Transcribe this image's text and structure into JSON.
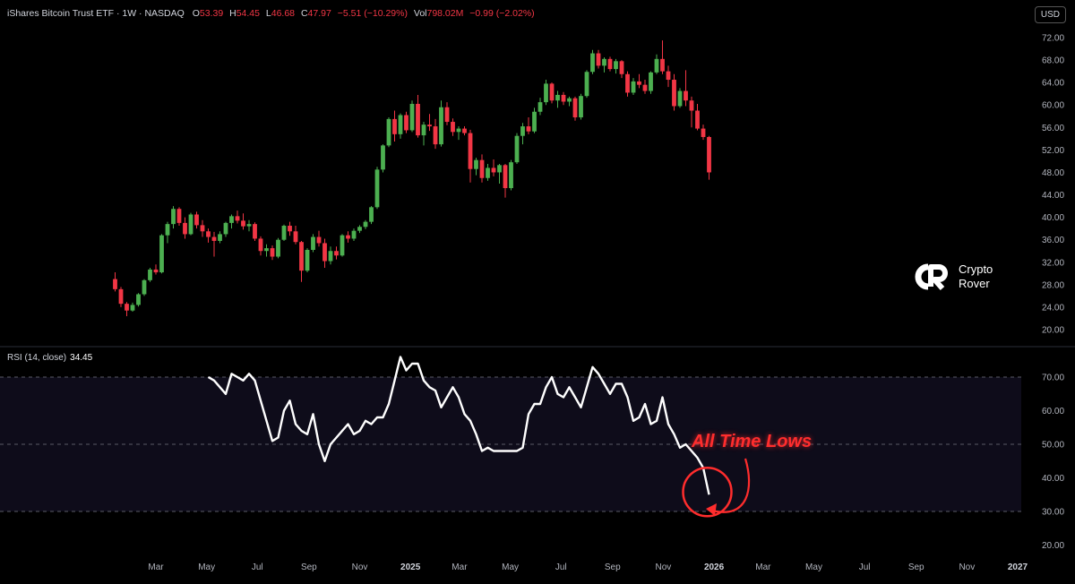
{
  "header": {
    "symbol": "iShares Bitcoin Trust ETF · 1W · NASDAQ",
    "open_label": "O",
    "open": "53.39",
    "high_label": "H",
    "high": "54.45",
    "low_label": "L",
    "low": "46.68",
    "close_label": "C",
    "close": "47.97",
    "change": "−5.51 (−10.29%)",
    "vol_label": "Vol",
    "vol": "798.02M",
    "vol_change": "−0.99 (−2.02%)"
  },
  "currency_button": "USD",
  "rsi_header": {
    "label": "RSI (14, close)",
    "value": "34.45"
  },
  "logo": {
    "line1": "Crypto",
    "line2": "Rover"
  },
  "annotation": "All Time Lows",
  "colors": {
    "up": "#26a69a",
    "up_green": "#4caf50",
    "down": "#f23645",
    "rsi_line": "#ffffff",
    "annotation": "#ff2d2d",
    "rsi_band": "#0e0c1a"
  },
  "chart_data": [
    {
      "type": "candlestick",
      "title": "iShares Bitcoin Trust ETF · 1W · NASDAQ",
      "ylim": [
        20,
        72
      ],
      "yticks": [
        "72.00",
        "68.00",
        "64.00",
        "60.00",
        "56.00",
        "52.00",
        "48.00",
        "44.00",
        "40.00",
        "36.00",
        "32.00",
        "28.00",
        "24.00",
        "20.00"
      ],
      "xticks": [
        "Mar",
        "May",
        "Jul",
        "Sep",
        "Nov",
        "2025",
        "Mar",
        "May",
        "Jul",
        "Sep",
        "Nov",
        "2026",
        "Mar",
        "May",
        "Jul",
        "Sep",
        "Nov",
        "2027"
      ],
      "x_start": "2024-01-12",
      "interval_weeks": 1,
      "ohlc": [
        [
          29.0,
          30.2,
          26.8,
          27.2
        ],
        [
          27.2,
          27.6,
          24.0,
          24.6
        ],
        [
          24.6,
          24.9,
          22.4,
          23.4
        ],
        [
          23.4,
          24.8,
          23.2,
          24.4
        ],
        [
          24.4,
          26.5,
          24.1,
          26.3
        ],
        [
          26.3,
          29.0,
          26.0,
          28.8
        ],
        [
          28.8,
          31.0,
          28.5,
          30.7
        ],
        [
          30.7,
          31.6,
          29.8,
          30.2
        ],
        [
          30.2,
          37.0,
          30.0,
          36.8
        ],
        [
          36.8,
          39.2,
          35.4,
          38.8
        ],
        [
          38.8,
          42.0,
          38.0,
          41.5
        ],
        [
          41.5,
          41.8,
          38.5,
          39.0
        ],
        [
          39.0,
          40.0,
          36.2,
          37.0
        ],
        [
          37.0,
          40.8,
          36.8,
          40.5
        ],
        [
          40.5,
          41.0,
          38.0,
          38.6
        ],
        [
          38.6,
          39.5,
          36.5,
          37.5
        ],
        [
          37.5,
          38.0,
          35.5,
          36.5
        ],
        [
          36.5,
          37.4,
          33.0,
          35.8
        ],
        [
          35.8,
          37.5,
          35.4,
          37.0
        ],
        [
          37.0,
          39.2,
          36.5,
          39.0
        ],
        [
          39.0,
          40.5,
          38.0,
          40.2
        ],
        [
          40.2,
          41.2,
          38.9,
          39.4
        ],
        [
          39.4,
          40.7,
          37.8,
          38.4
        ],
        [
          38.4,
          39.5,
          37.5,
          38.8
        ],
        [
          38.8,
          39.1,
          35.8,
          36.2
        ],
        [
          36.2,
          36.6,
          33.2,
          34.0
        ],
        [
          34.0,
          35.2,
          33.0,
          34.5
        ],
        [
          34.5,
          35.0,
          32.4,
          33.0
        ],
        [
          33.0,
          36.3,
          32.7,
          36.0
        ],
        [
          36.0,
          38.7,
          35.8,
          38.5
        ],
        [
          38.5,
          39.2,
          36.7,
          37.5
        ],
        [
          37.5,
          38.5,
          35.2,
          35.6
        ],
        [
          35.6,
          35.8,
          28.5,
          30.5
        ],
        [
          30.5,
          34.5,
          30.2,
          34.2
        ],
        [
          34.2,
          37.0,
          33.8,
          36.5
        ],
        [
          36.5,
          37.6,
          34.8,
          35.4
        ],
        [
          35.4,
          36.2,
          31.0,
          32.2
        ],
        [
          32.2,
          34.8,
          31.6,
          34.0
        ],
        [
          34.0,
          34.8,
          32.5,
          33.2
        ],
        [
          33.2,
          37.0,
          33.0,
          36.8
        ],
        [
          36.8,
          37.5,
          35.5,
          36.2
        ],
        [
          36.2,
          38.0,
          35.8,
          37.6
        ],
        [
          37.6,
          38.6,
          37.2,
          38.3
        ],
        [
          38.3,
          39.5,
          37.9,
          39.2
        ],
        [
          39.2,
          42.0,
          38.8,
          41.8
        ],
        [
          41.8,
          49.0,
          41.5,
          48.5
        ],
        [
          48.5,
          53.0,
          48.0,
          52.8
        ],
        [
          52.8,
          57.8,
          52.5,
          57.5
        ],
        [
          57.5,
          59.0,
          53.5,
          54.8
        ],
        [
          54.8,
          58.5,
          54.0,
          58.2
        ],
        [
          58.2,
          58.8,
          55.0,
          55.5
        ],
        [
          55.5,
          60.8,
          55.2,
          60.2
        ],
        [
          60.2,
          61.8,
          54.2,
          54.6
        ],
        [
          54.6,
          57.0,
          52.8,
          56.5
        ],
        [
          56.5,
          58.4,
          55.4,
          56.2
        ],
        [
          56.2,
          57.5,
          52.2,
          53.0
        ],
        [
          53.0,
          60.8,
          52.6,
          59.6
        ],
        [
          59.6,
          60.5,
          56.4,
          57.0
        ],
        [
          57.0,
          57.6,
          54.5,
          55.2
        ],
        [
          55.2,
          56.2,
          53.8,
          55.8
        ],
        [
          55.8,
          56.2,
          54.6,
          55.0
        ],
        [
          55.0,
          55.6,
          46.2,
          48.6
        ],
        [
          48.6,
          50.6,
          47.5,
          50.2
        ],
        [
          50.2,
          51.2,
          46.2,
          47.0
        ],
        [
          47.0,
          49.5,
          46.5,
          48.8
        ],
        [
          48.8,
          50.3,
          47.3,
          48.0
        ],
        [
          48.0,
          49.5,
          46.0,
          49.3
        ],
        [
          49.3,
          49.5,
          43.5,
          45.2
        ],
        [
          45.2,
          50.2,
          44.8,
          49.8
        ],
        [
          49.8,
          55.0,
          49.5,
          54.5
        ],
        [
          54.5,
          56.8,
          53.0,
          56.2
        ],
        [
          56.2,
          57.8,
          54.8,
          55.3
        ],
        [
          55.3,
          59.5,
          55.0,
          58.8
        ],
        [
          58.8,
          61.3,
          58.2,
          60.5
        ],
        [
          60.5,
          64.5,
          60.0,
          63.8
        ],
        [
          63.8,
          64.0,
          60.3,
          60.8
        ],
        [
          60.8,
          62.5,
          59.5,
          61.8
        ],
        [
          61.8,
          62.3,
          60.0,
          60.6
        ],
        [
          60.6,
          61.5,
          59.8,
          61.2
        ],
        [
          61.2,
          61.5,
          57.2,
          57.8
        ],
        [
          57.8,
          62.0,
          57.4,
          61.6
        ],
        [
          61.6,
          66.2,
          61.3,
          65.9
        ],
        [
          65.9,
          69.8,
          65.5,
          69.2
        ],
        [
          69.2,
          69.8,
          66.5,
          67.0
        ],
        [
          67.0,
          68.5,
          65.8,
          68.2
        ],
        [
          68.2,
          68.6,
          66.0,
          66.4
        ],
        [
          66.4,
          68.2,
          65.6,
          67.8
        ],
        [
          67.8,
          68.0,
          64.8,
          65.5
        ],
        [
          65.5,
          66.0,
          61.5,
          62.2
        ],
        [
          62.2,
          64.8,
          61.8,
          64.2
        ],
        [
          64.2,
          65.5,
          63.0,
          63.6
        ],
        [
          63.6,
          64.5,
          62.0,
          62.5
        ],
        [
          62.5,
          66.0,
          62.0,
          65.8
        ],
        [
          65.8,
          69.0,
          65.5,
          68.2
        ],
        [
          68.2,
          71.5,
          65.5,
          66.0
        ],
        [
          66.0,
          67.0,
          63.2,
          64.5
        ],
        [
          64.5,
          65.5,
          59.0,
          59.8
        ],
        [
          59.8,
          63.0,
          59.5,
          62.5
        ],
        [
          62.5,
          66.2,
          59.8,
          60.8
        ],
        [
          60.8,
          61.5,
          56.0,
          59.0
        ],
        [
          59.0,
          60.2,
          55.5,
          55.8
        ],
        [
          55.8,
          56.5,
          53.8,
          54.3
        ],
        [
          54.3,
          54.5,
          46.7,
          48.0
        ]
      ]
    },
    {
      "type": "line",
      "title": "RSI (14, close)",
      "ylim": [
        20,
        75
      ],
      "yticks": [
        "70.00",
        "60.00",
        "50.00",
        "40.00",
        "30.00",
        "20.00"
      ],
      "guides": [
        70,
        50,
        30
      ],
      "x_start": "2024-05-03",
      "interval_weeks": 1,
      "series": [
        {
          "values": [
            70,
            69,
            67,
            65,
            71,
            70,
            69,
            71,
            69,
            63,
            57,
            51,
            52,
            60,
            63,
            56,
            54,
            53,
            59,
            50,
            45,
            50,
            52,
            54,
            56,
            53,
            54,
            57,
            56,
            58,
            58,
            62,
            69,
            76,
            72,
            74,
            74,
            69,
            67,
            66,
            61,
            64,
            67,
            64,
            59,
            57,
            53,
            48,
            49,
            48,
            48,
            48,
            48,
            48,
            49,
            59,
            62,
            62,
            67,
            70,
            65,
            64,
            67,
            64,
            61,
            67,
            73,
            71,
            68,
            65,
            68,
            68,
            64,
            57,
            58,
            62,
            56,
            57,
            64,
            56,
            53,
            49,
            50,
            48,
            46,
            43,
            35
          ]
        }
      ]
    }
  ]
}
